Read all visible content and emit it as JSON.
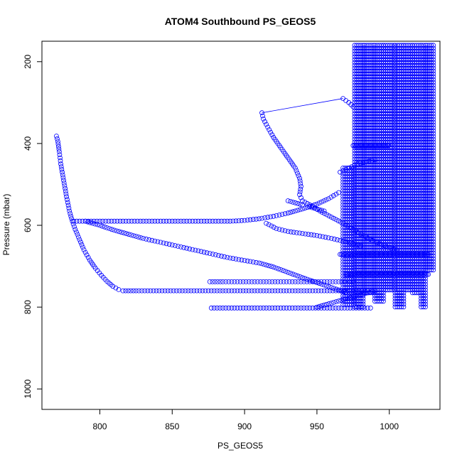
{
  "chart_data": {
    "type": "scatter",
    "title": "ATOM4 Southbound PS_GEOS5",
    "xlabel": "PS_GEOS5",
    "ylabel": "Pressure (mbar)",
    "xlim": [
      760,
      1035
    ],
    "ylim": [
      1050,
      150
    ],
    "y_reversed": true,
    "x_ticks": [
      "800",
      "850",
      "900",
      "950",
      "1000"
    ],
    "y_ticks": [
      "200",
      "400",
      "600",
      "800",
      "1000"
    ],
    "marker": "open-circle",
    "color": "#0000ff",
    "grid": false,
    "legend": "none",
    "points": [
      [
        770,
        382
      ],
      [
        771,
        395
      ],
      [
        772,
        420
      ],
      [
        773,
        450
      ],
      [
        775,
        490
      ],
      [
        777,
        530
      ],
      [
        779,
        565
      ],
      [
        781,
        590
      ],
      [
        783,
        610
      ],
      [
        786,
        635
      ],
      [
        789,
        660
      ],
      [
        793,
        685
      ],
      [
        797,
        705
      ],
      [
        801,
        722
      ],
      [
        805,
        737
      ],
      [
        809,
        749
      ],
      [
        813,
        757
      ],
      [
        816,
        760
      ],
      [
        825,
        760
      ],
      [
        835,
        760
      ],
      [
        845,
        760
      ],
      [
        855,
        760
      ],
      [
        865,
        760
      ],
      [
        875,
        760
      ],
      [
        885,
        760
      ],
      [
        895,
        760
      ],
      [
        905,
        760
      ],
      [
        915,
        760
      ],
      [
        925,
        760
      ],
      [
        935,
        760
      ],
      [
        945,
        760
      ],
      [
        955,
        760
      ],
      [
        965,
        760
      ],
      [
        975,
        760
      ],
      [
        985,
        760
      ],
      [
        782,
        590
      ],
      [
        790,
        590
      ],
      [
        800,
        590
      ],
      [
        810,
        590
      ],
      [
        820,
        590
      ],
      [
        830,
        590
      ],
      [
        840,
        590
      ],
      [
        850,
        590
      ],
      [
        860,
        590
      ],
      [
        870,
        590
      ],
      [
        880,
        590
      ],
      [
        890,
        590
      ],
      [
        900,
        588
      ],
      [
        910,
        584
      ],
      [
        920,
        578
      ],
      [
        930,
        570
      ],
      [
        940,
        560
      ],
      [
        950,
        548
      ],
      [
        958,
        535
      ],
      [
        965,
        520
      ],
      [
        790,
        590
      ],
      [
        800,
        600
      ],
      [
        810,
        612
      ],
      [
        820,
        622
      ],
      [
        830,
        632
      ],
      [
        840,
        640
      ],
      [
        850,
        648
      ],
      [
        860,
        656
      ],
      [
        870,
        664
      ],
      [
        880,
        672
      ],
      [
        890,
        680
      ],
      [
        900,
        686
      ],
      [
        910,
        692
      ],
      [
        920,
        702
      ],
      [
        930,
        715
      ],
      [
        940,
        728
      ],
      [
        950,
        740
      ],
      [
        960,
        752
      ],
      [
        970,
        764
      ],
      [
        876,
        738
      ],
      [
        885,
        738
      ],
      [
        895,
        738
      ],
      [
        905,
        738
      ],
      [
        915,
        738
      ],
      [
        925,
        738
      ],
      [
        935,
        738
      ],
      [
        945,
        738
      ],
      [
        955,
        738
      ],
      [
        965,
        738
      ],
      [
        975,
        738
      ],
      [
        877,
        802
      ],
      [
        887,
        802
      ],
      [
        897,
        802
      ],
      [
        907,
        802
      ],
      [
        917,
        802
      ],
      [
        927,
        802
      ],
      [
        937,
        802
      ],
      [
        947,
        802
      ],
      [
        957,
        802
      ],
      [
        967,
        802
      ],
      [
        977,
        802
      ],
      [
        987,
        802
      ],
      [
        912,
        325
      ],
      [
        913,
        340
      ],
      [
        916,
        360
      ],
      [
        920,
        385
      ],
      [
        925,
        410
      ],
      [
        930,
        435
      ],
      [
        935,
        460
      ],
      [
        938,
        485
      ],
      [
        939,
        505
      ],
      [
        938,
        525
      ],
      [
        940,
        540
      ],
      [
        945,
        550
      ],
      [
        952,
        565
      ],
      [
        960,
        580
      ],
      [
        968,
        595
      ],
      [
        975,
        610
      ],
      [
        982,
        625
      ],
      [
        990,
        640
      ],
      [
        998,
        652
      ],
      [
        1005,
        660
      ],
      [
        968,
        290
      ],
      [
        972,
        300
      ],
      [
        975,
        310
      ],
      [
        915,
        595
      ],
      [
        922,
        608
      ],
      [
        930,
        615
      ],
      [
        940,
        620
      ],
      [
        950,
        625
      ],
      [
        960,
        632
      ],
      [
        970,
        640
      ],
      [
        980,
        650
      ],
      [
        945,
        555
      ],
      [
        950,
        560
      ],
      [
        955,
        565
      ],
      [
        930,
        540
      ],
      [
        935,
        545
      ],
      [
        940,
        550
      ],
      [
        950,
        800
      ],
      [
        960,
        790
      ],
      [
        970,
        780
      ],
      [
        980,
        770
      ],
      [
        990,
        760
      ],
      [
        966,
        470
      ],
      [
        972,
        460
      ],
      [
        978,
        450
      ],
      [
        984,
        445
      ],
      [
        990,
        440
      ]
    ],
    "segments": [
      [
        [
          912,
          325
        ],
        [
          968,
          290
        ]
      ]
    ],
    "dense_bands": [
      {
        "x": [
          968,
          976
        ],
        "y": [
          460,
          800
        ]
      },
      {
        "x": [
          976,
          983
        ],
        "y": [
          160,
          800
        ]
      },
      {
        "x": [
          983,
          990
        ],
        "y": [
          160,
          770
        ]
      },
      {
        "x": [
          990,
          996
        ],
        "y": [
          160,
          790
        ]
      },
      {
        "x": [
          996,
          1004
        ],
        "y": [
          160,
          760
        ]
      },
      {
        "x": [
          1004,
          1010
        ],
        "y": [
          160,
          805
        ]
      },
      {
        "x": [
          1010,
          1016
        ],
        "y": [
          160,
          760
        ]
      },
      {
        "x": [
          1016,
          1022
        ],
        "y": [
          160,
          770
        ]
      },
      {
        "x": [
          1022,
          1026
        ],
        "y": [
          160,
          805
        ]
      },
      {
        "x": [
          1026,
          1031
        ],
        "y": [
          160,
          715
        ]
      }
    ],
    "dense_rows": [
      {
        "x": [
          966,
          1027
        ],
        "y": 671
      },
      {
        "x": [
          970,
          1027
        ],
        "y": 720
      },
      {
        "x": [
          975,
          1000
        ],
        "y": 405
      }
    ]
  }
}
